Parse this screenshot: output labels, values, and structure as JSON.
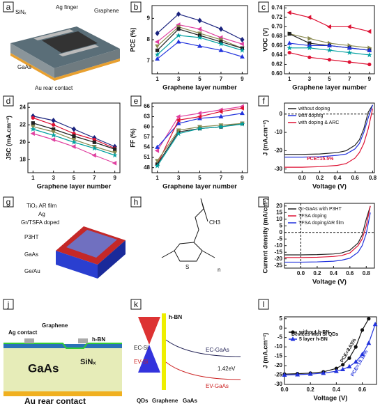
{
  "chart_data": [
    {
      "panel": "b",
      "type": "line",
      "xlabel": "Graphene layer number",
      "ylabel": "PCE (%)",
      "x": [
        1,
        3,
        5,
        7,
        9
      ],
      "xlim": [
        0.5,
        9.5
      ],
      "xticks": [
        1,
        3,
        5,
        7,
        9
      ],
      "ylim": [
        6.4,
        9.6
      ],
      "yticks": [
        7,
        8,
        9
      ],
      "series": [
        {
          "color": "#1a237e",
          "marker": "diamond",
          "values": [
            8.3,
            9.2,
            8.9,
            8.5,
            8.0
          ]
        },
        {
          "color": "#e040a0",
          "marker": "tri-left",
          "values": [
            7.9,
            8.7,
            8.5,
            8.1,
            7.8
          ]
        },
        {
          "color": "#8a8a50",
          "marker": "tri-down",
          "values": [
            7.7,
            8.6,
            8.3,
            8.0,
            7.6
          ]
        },
        {
          "color": "#222222",
          "marker": "square",
          "values": [
            7.5,
            8.5,
            8.2,
            7.9,
            7.6
          ]
        },
        {
          "color": "#00a0a0",
          "marker": "star",
          "values": [
            7.3,
            8.2,
            8.1,
            7.8,
            7.5
          ]
        },
        {
          "color": "#2233dd",
          "marker": "tri-up",
          "values": [
            7.1,
            7.9,
            7.7,
            7.5,
            7.2
          ]
        }
      ]
    },
    {
      "panel": "c",
      "type": "line",
      "xlabel": "Graphene layer number",
      "ylabel": "VOC (V)",
      "x": [
        1,
        3,
        5,
        7,
        9
      ],
      "xlim": [
        0.5,
        9.5
      ],
      "xticks": [
        1,
        3,
        5,
        7,
        9
      ],
      "ylim": [
        0.6,
        0.745
      ],
      "yticks": [
        {
          "value": 0.6,
          "label": "0.60"
        },
        0.62,
        0.64,
        0.66,
        0.68,
        {
          "value": 0.7,
          "label": "0.70"
        },
        0.72,
        0.74
      ],
      "series": [
        {
          "color": "#dd1133",
          "marker": "tri-left",
          "values": [
            0.73,
            0.72,
            0.7,
            0.7,
            0.69
          ]
        },
        {
          "color": "#8a8a50",
          "marker": "tri-right",
          "values": [
            0.685,
            0.675,
            0.665,
            0.66,
            0.655
          ]
        },
        {
          "color": "#222222",
          "marker": "square",
          "values": [
            0.685,
            0.665,
            0.66,
            0.655,
            0.65
          ]
        },
        {
          "color": "#2233dd",
          "marker": "tri-up",
          "values": [
            0.665,
            0.66,
            0.66,
            0.655,
            0.65
          ]
        },
        {
          "color": "#00a0a0",
          "marker": "star",
          "values": [
            0.655,
            0.655,
            0.65,
            0.645,
            0.64
          ]
        },
        {
          "color": "#dd1133",
          "marker": "circle",
          "values": [
            0.645,
            0.635,
            0.63,
            0.625,
            0.62
          ]
        }
      ]
    },
    {
      "panel": "d",
      "type": "line",
      "xlabel": "Graphene layer number",
      "ylabel": "JSC (mA.cm⁻²)",
      "x": [
        1,
        3,
        5,
        7,
        9
      ],
      "xlim": [
        0.5,
        9.5
      ],
      "xticks": [
        1,
        3,
        5,
        7,
        9
      ],
      "ylim": [
        16.5,
        24.5
      ],
      "yticks": [
        18,
        20,
        22,
        24
      ],
      "series": [
        {
          "color": "#1a237e",
          "marker": "diamond",
          "values": [
            23.0,
            22.5,
            21.5,
            20.5,
            19.5
          ]
        },
        {
          "color": "#dd1133",
          "marker": "circle",
          "values": [
            22.8,
            22.0,
            21.0,
            20.3,
            19.3
          ]
        },
        {
          "color": "#222222",
          "marker": "square",
          "values": [
            22.2,
            21.5,
            20.7,
            20.0,
            19.2
          ]
        },
        {
          "color": "#8a8a50",
          "marker": "tri-down",
          "values": [
            21.8,
            21.2,
            20.3,
            19.5,
            18.8
          ]
        },
        {
          "color": "#00a0a0",
          "marker": "star",
          "values": [
            21.5,
            20.8,
            20.0,
            19.3,
            18.5
          ]
        },
        {
          "color": "#e040a0",
          "marker": "tri-left",
          "values": [
            21.0,
            20.3,
            19.5,
            18.5,
            17.6
          ]
        }
      ]
    },
    {
      "panel": "e",
      "type": "line",
      "xlabel": "Graphene layer number",
      "ylabel": "FF (%)",
      "x": [
        1,
        3,
        5,
        7,
        9
      ],
      "xlim": [
        0.5,
        9.5
      ],
      "xticks": [
        1,
        3,
        5,
        7,
        9
      ],
      "ylim": [
        46.5,
        67
      ],
      "yticks": [
        48,
        51,
        54,
        57,
        60,
        63,
        66
      ],
      "series": [
        {
          "color": "#e040a0",
          "marker": "tri-left",
          "values": [
            53,
            63,
            64,
            65,
            66
          ]
        },
        {
          "color": "#2233dd",
          "marker": "tri-up",
          "values": [
            54,
            61,
            62.5,
            63,
            64
          ]
        },
        {
          "color": "#dd1133",
          "marker": "tri-left",
          "values": [
            49,
            62,
            63,
            64.5,
            65.5
          ]
        },
        {
          "color": "#222222",
          "marker": "square",
          "values": [
            49,
            58.5,
            59.5,
            60,
            61
          ]
        },
        {
          "color": "#8a8a50",
          "marker": "tri-down",
          "values": [
            50,
            59,
            60,
            60.5,
            61
          ]
        },
        {
          "color": "#00a0a0",
          "marker": "star",
          "values": [
            48.5,
            58,
            59.5,
            60,
            60.8
          ]
        }
      ]
    },
    {
      "panel": "f",
      "type": "line",
      "xlabel": "Voltage (V)",
      "ylabel": "J (mA.cm⁻²)",
      "legend": "upper left",
      "annotations": [
        "PCE=15.5%"
      ],
      "x": [
        -0.2,
        0,
        0.2,
        0.4,
        0.5,
        0.6,
        0.65,
        0.7,
        0.75,
        0.8
      ],
      "xlim": [
        -0.2,
        0.82
      ],
      "xticks": [
        {
          "value": 0,
          "label": "0.0"
        },
        0.2,
        0.4,
        0.6,
        0.8
      ],
      "ylim": [
        -32,
        6
      ],
      "yticks": [
        -30,
        -20,
        -10,
        0
      ],
      "series": [
        {
          "name": "without doping",
          "color": "#222222",
          "values": [
            -22,
            -22,
            -21.8,
            -21,
            -20,
            -17,
            -14,
            -8,
            1,
            5
          ]
        },
        {
          "name": "with doping",
          "color": "#2233dd",
          "values": [
            -23.5,
            -23.5,
            -23.3,
            -22.5,
            -21.8,
            -19,
            -16,
            -10,
            -2,
            5
          ]
        },
        {
          "name": "with doping & ARC",
          "color": "#dd1133",
          "values": [
            -29,
            -29,
            -28.7,
            -28,
            -27,
            -24,
            -21,
            -16,
            -8,
            3
          ]
        }
      ]
    },
    {
      "panel": "i",
      "type": "line",
      "xlabel": "Voltage (V)",
      "ylabel": "Current density (mA/cm²)",
      "legend": "upper left",
      "x": [
        -0.2,
        0,
        0.2,
        0.4,
        0.5,
        0.6,
        0.7,
        0.75,
        0.8,
        0.85
      ],
      "xlim": [
        -0.2,
        0.9
      ],
      "xticks": [
        {
          "value": 0,
          "label": "0.0"
        },
        0.2,
        0.4,
        0.6,
        0.8
      ],
      "ylim": [
        -27,
        22
      ],
      "yticks": [
        -25,
        -20,
        -15,
        -10,
        -5,
        0,
        5,
        10,
        15,
        20
      ],
      "series": [
        {
          "name": "Gr-GaAs with P3HT",
          "color": "#222222",
          "values": [
            -17,
            -17,
            -16.8,
            -16.3,
            -15.5,
            -13.5,
            -8,
            -2,
            10,
            20
          ]
        },
        {
          "name": "TFSA doping",
          "color": "#dd1133",
          "values": [
            -19,
            -19,
            -18.8,
            -18.2,
            -17.5,
            -15.5,
            -10,
            -5,
            5,
            20
          ]
        },
        {
          "name": "TFSA doping/AR film",
          "color": "#2233dd",
          "values": [
            -22.5,
            -22.5,
            -22.3,
            -21.8,
            -21,
            -19.5,
            -15,
            -10,
            -1,
            15
          ]
        }
      ]
    },
    {
      "panel": "l",
      "type": "line",
      "xlabel": "Voltage (V)",
      "ylabel": "J (mA.cm⁻²)",
      "legend": "upper left",
      "annotations": [
        "Devices with Si QDs",
        "PCE=8.63%",
        "PCE=10.18%"
      ],
      "x": [
        0,
        0.1,
        0.2,
        0.3,
        0.4,
        0.45,
        0.5,
        0.55,
        0.6,
        0.65,
        0.7
      ],
      "xlim": [
        0,
        0.71
      ],
      "xticks": [
        {
          "value": 0,
          "label": "0.0"
        },
        0.2,
        0.4,
        0.6
      ],
      "ylim": [
        -30,
        6
      ],
      "yticks": [
        -30,
        -25,
        -20,
        -15,
        -10,
        -5,
        0,
        5
      ],
      "series": [
        {
          "name": "without h-BN",
          "color": "#111111",
          "marker": "circle",
          "values": [
            -24.5,
            -24.3,
            -24,
            -23.3,
            -21.5,
            -19.5,
            -16,
            -10,
            -1,
            5,
            null
          ]
        },
        {
          "name": "5 layer h-BN",
          "color": "#2233dd",
          "marker": "tri-up",
          "values": [
            -25,
            -24.8,
            -24.5,
            -24,
            -23,
            -22,
            -20.5,
            -18,
            -14,
            -8,
            2
          ]
        }
      ]
    }
  ],
  "diagrams": {
    "a": {
      "panel": "a",
      "labels": [
        "SiNₓ",
        "Ag finger",
        "Graphene",
        "GaAs",
        "Au rear contact"
      ]
    },
    "g": {
      "panel": "g",
      "labels": [
        "TiO₂ AR film",
        "Ag",
        "Gr/TSFA doped",
        "P3HT",
        "GaAs",
        "Ge/Au"
      ]
    },
    "h": {
      "panel": "h",
      "labels": [
        "CH3",
        "S",
        "n"
      ]
    },
    "j": {
      "panel": "j",
      "labels": [
        "Graphene",
        "Ag contact",
        "h-BN",
        "SiNₓ",
        "GaAs",
        "Au rear contact"
      ]
    },
    "k": {
      "panel": "k",
      "labels": [
        "h-BN",
        "EC-Si",
        "EV-Si",
        "EC-GaAs",
        "EV-GaAs",
        "1.42eV",
        "QDs",
        "Graphene",
        "GaAs"
      ]
    }
  }
}
